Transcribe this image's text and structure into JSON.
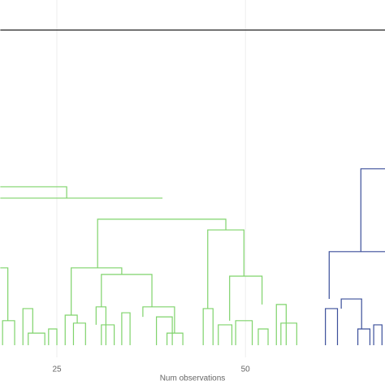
{
  "chart_data": {
    "type": "dendrogram",
    "xlabel": "Num observations",
    "xlim": [
      17.46,
      68.5
    ],
    "xticks": [
      25,
      50
    ],
    "grid": true,
    "ylim": [
      0,
      100
    ],
    "groups": [
      {
        "color": "#7fd36b",
        "links": [
          [
            17.5,
            26.3,
            45.9,
            45.9,
            42.6
          ],
          [
            17.5,
            39.0,
            42.6,
            42.6,
            42.6
          ],
          [
            30.4,
            47.4,
            36.5,
            22.4,
            33.4
          ],
          [
            45.0,
            49.8,
            33.4,
            10.6,
            20.0
          ],
          [
            47.9,
            52.2,
            20.0,
            7.1,
            11.8
          ],
          [
            26.9,
            33.6,
            22.4,
            8.7,
            20.5
          ],
          [
            30.9,
            37.6,
            20.5,
            11.1,
            11.1
          ],
          [
            17.5,
            18.5,
            22.4,
            22.4,
            7.1
          ],
          [
            17.8,
            19.4,
            7.1,
            0,
            0
          ],
          [
            20.5,
            21.8,
            10.6,
            0,
            3.5
          ],
          [
            21.2,
            23.4,
            3.5,
            0,
            0
          ],
          [
            23.9,
            25.0,
            4.7,
            0,
            0
          ],
          [
            26.1,
            27.7,
            8.7,
            0,
            6.4
          ],
          [
            27.2,
            28.8,
            6.4,
            0,
            0
          ],
          [
            30.2,
            31.5,
            11.1,
            5.9,
            0
          ],
          [
            30.9,
            32.6,
            5.9,
            0,
            0
          ],
          [
            33.6,
            34.7,
            9.4,
            0,
            0
          ],
          [
            36.4,
            40.6,
            11.1,
            8.2,
            3.5
          ],
          [
            38.2,
            40.3,
            8.2,
            0,
            0
          ],
          [
            39.6,
            41.7,
            3.5,
            0,
            0
          ],
          [
            44.4,
            45.7,
            10.6,
            0,
            0
          ],
          [
            46.4,
            48.2,
            5.9,
            0,
            0
          ],
          [
            48.7,
            50.9,
            7.1,
            0,
            0
          ],
          [
            51.7,
            53.0,
            4.7,
            0,
            0
          ],
          [
            54.7,
            56.8,
            6.4,
            0,
            0
          ],
          [
            54.1,
            55.4,
            11.8,
            0,
            0
          ]
        ]
      },
      {
        "color": "#3b4f9a",
        "links": [
          [
            65.3,
            68.5,
            51.1,
            27.1,
            51.1
          ],
          [
            61.1,
            68.5,
            27.1,
            13.4,
            27.1
          ],
          [
            60.6,
            62.2,
            10.6,
            0,
            0
          ],
          [
            62.7,
            65.4,
            13.4,
            10.6,
            4.7
          ],
          [
            64.9,
            66.5,
            4.7,
            0,
            0
          ],
          [
            67.0,
            68.1,
            5.9,
            0,
            0
          ]
        ]
      },
      {
        "color": "#222222",
        "links": [
          [
            17.5,
            68.5,
            91.3,
            91.3,
            91.3
          ]
        ]
      }
    ]
  }
}
